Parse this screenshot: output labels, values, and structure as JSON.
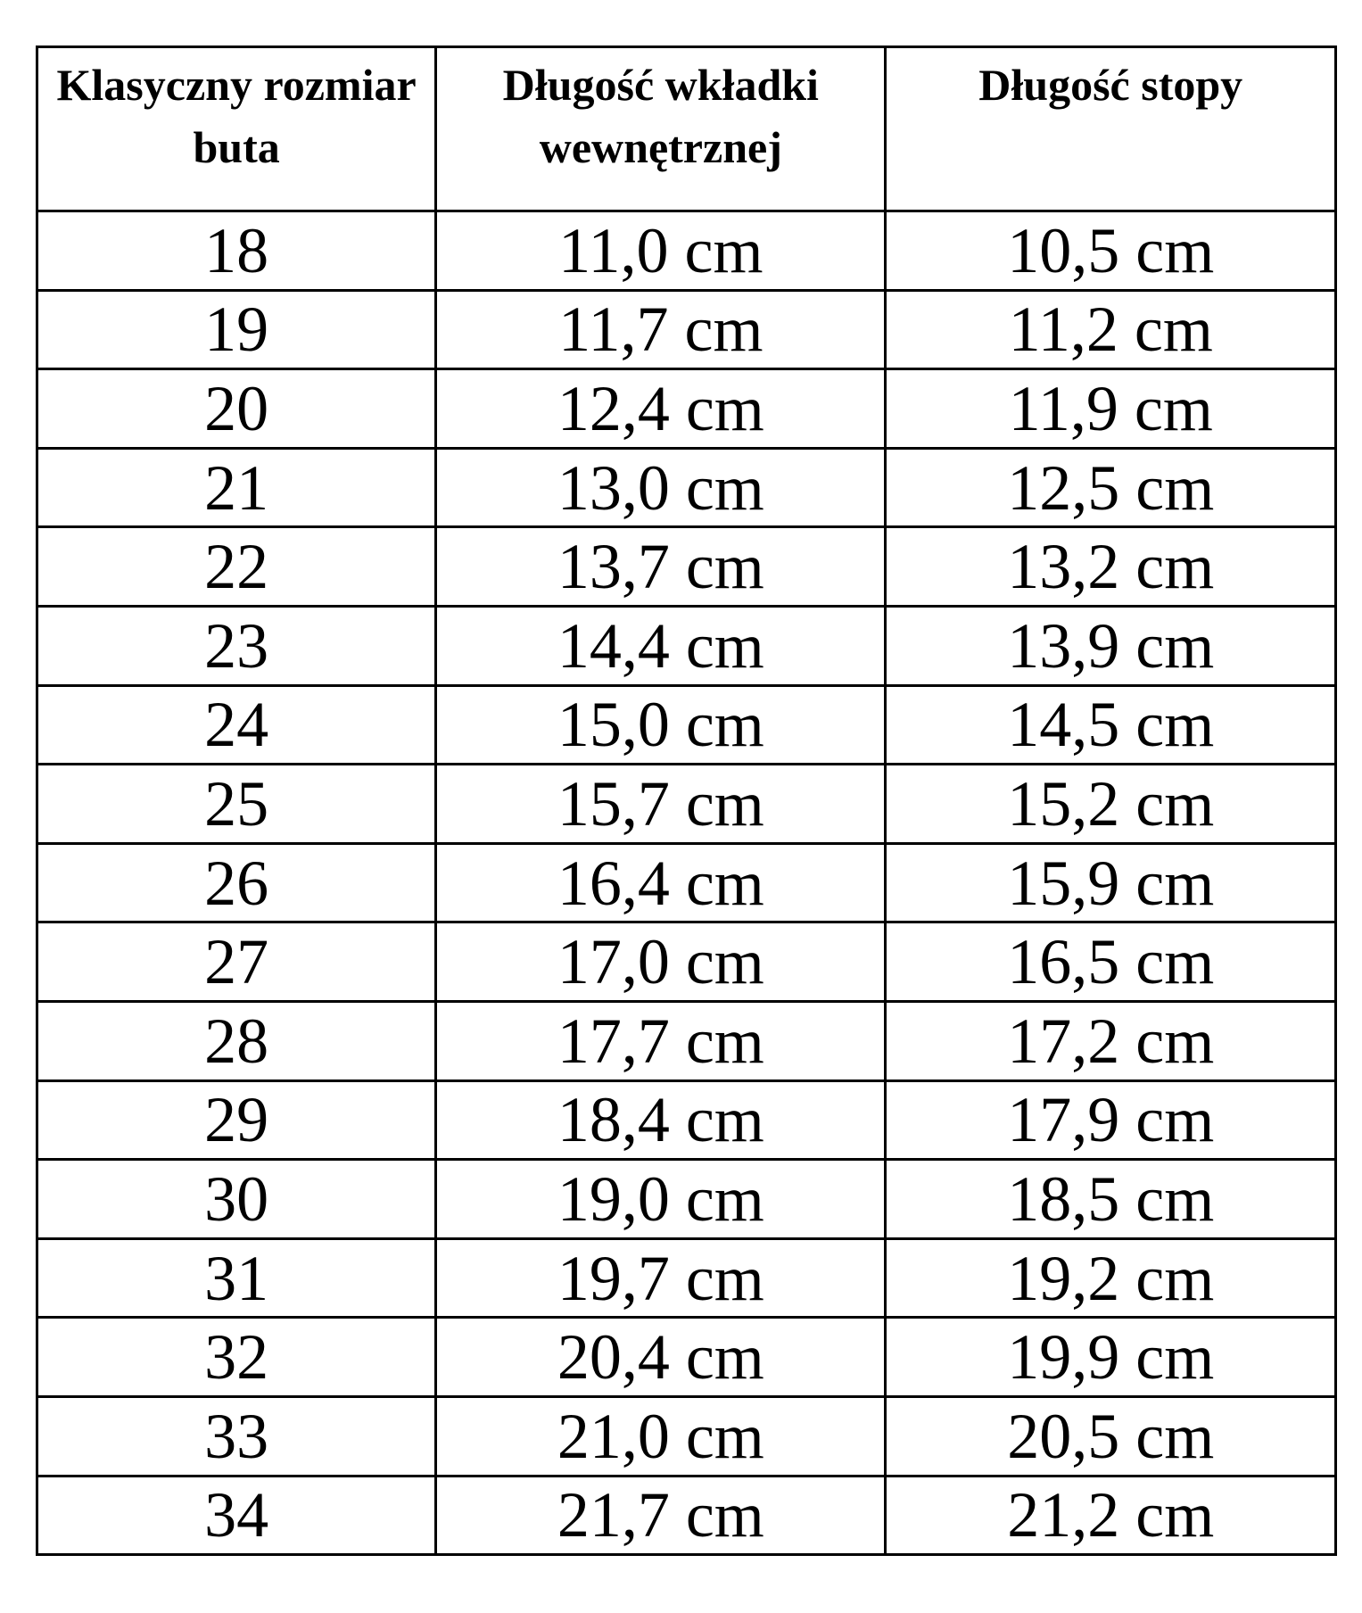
{
  "table": {
    "headers": [
      "Klasyczny rozmiar buta",
      "Długość wkładki wewnętrznej",
      "Długość stopy"
    ],
    "rows": [
      [
        "18",
        "11,0 cm",
        "10,5 cm"
      ],
      [
        "19",
        "11,7 cm",
        "11,2 cm"
      ],
      [
        "20",
        "12,4 cm",
        "11,9 cm"
      ],
      [
        "21",
        "13,0 cm",
        "12,5 cm"
      ],
      [
        "22",
        "13,7 cm",
        "13,2 cm"
      ],
      [
        "23",
        "14,4 cm",
        "13,9 cm"
      ],
      [
        "24",
        "15,0 cm",
        "14,5 cm"
      ],
      [
        "25",
        "15,7 cm",
        "15,2 cm"
      ],
      [
        "26",
        "16,4 cm",
        "15,9 cm"
      ],
      [
        "27",
        "17,0 cm",
        "16,5 cm"
      ],
      [
        "28",
        "17,7 cm",
        "17,2 cm"
      ],
      [
        "29",
        "18,4 cm",
        "17,9 cm"
      ],
      [
        "30",
        "19,0 cm",
        "18,5 cm"
      ],
      [
        "31",
        "19,7 cm",
        "19,2 cm"
      ],
      [
        "32",
        "20,4 cm",
        "19,9 cm"
      ],
      [
        "33",
        "21,0 cm",
        "20,5 cm"
      ],
      [
        "34",
        "21,7 cm",
        "21,2 cm"
      ]
    ]
  }
}
